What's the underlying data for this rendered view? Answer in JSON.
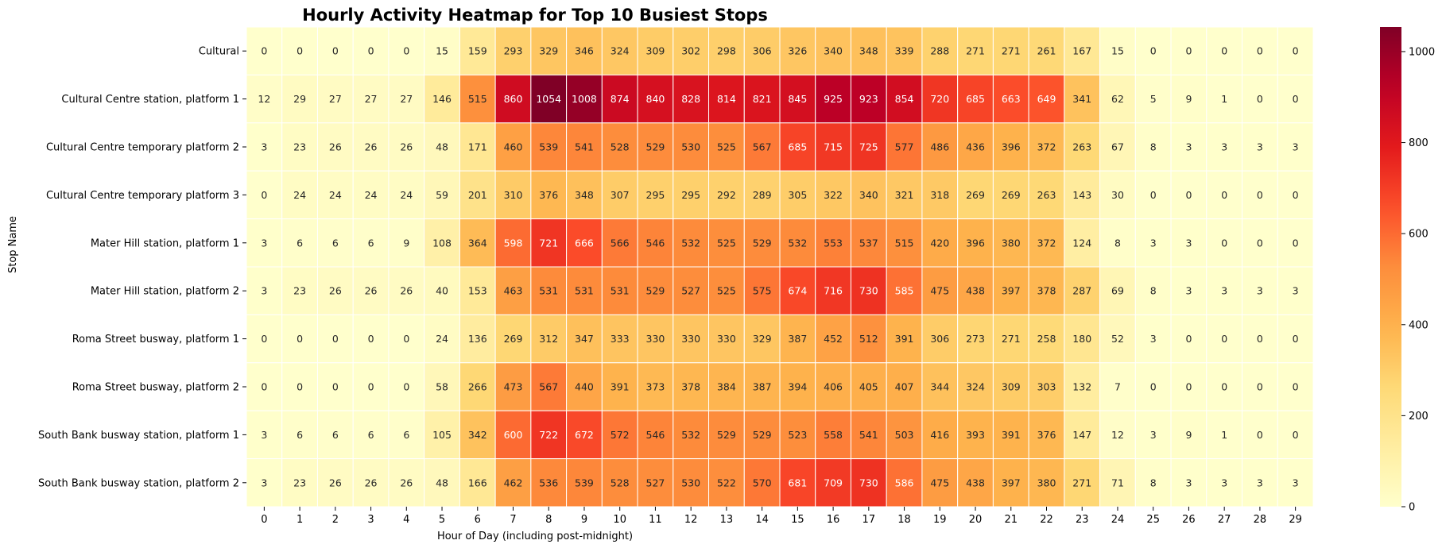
{
  "chart_data": {
    "type": "heatmap",
    "title": "Hourly Activity Heatmap for Top 10 Busiest Stops",
    "xlabel": "Hour of Day (including post-midnight)",
    "ylabel": "Stop Name",
    "x": [
      "0",
      "1",
      "2",
      "3",
      "4",
      "5",
      "6",
      "7",
      "8",
      "9",
      "10",
      "11",
      "12",
      "13",
      "14",
      "15",
      "16",
      "17",
      "18",
      "19",
      "20",
      "21",
      "22",
      "23",
      "24",
      "25",
      "26",
      "27",
      "28",
      "29"
    ],
    "y": [
      "Cultural",
      "Cultural Centre station, platform 1",
      "Cultural Centre temporary platform 2",
      "Cultural Centre temporary platform 3",
      "Mater Hill station, platform 1",
      "Mater Hill station, platform 2",
      "Roma Street busway, platform 1",
      "Roma Street busway, platform 2",
      "South Bank busway station, platform 1",
      "South Bank busway station, platform 2"
    ],
    "values": [
      [
        0,
        0,
        0,
        0,
        0,
        15,
        159,
        293,
        329,
        346,
        324,
        309,
        302,
        298,
        306,
        326,
        340,
        348,
        339,
        288,
        271,
        271,
        261,
        167,
        15,
        0,
        0,
        0,
        0,
        0
      ],
      [
        12,
        29,
        27,
        27,
        27,
        146,
        515,
        860,
        1054,
        1008,
        874,
        840,
        828,
        814,
        821,
        845,
        925,
        923,
        854,
        720,
        685,
        663,
        649,
        341,
        62,
        5,
        9,
        1,
        0,
        0
      ],
      [
        3,
        23,
        26,
        26,
        26,
        48,
        171,
        460,
        539,
        541,
        528,
        529,
        530,
        525,
        567,
        685,
        715,
        725,
        577,
        486,
        436,
        396,
        372,
        263,
        67,
        8,
        3,
        3,
        3,
        3
      ],
      [
        0,
        24,
        24,
        24,
        24,
        59,
        201,
        310,
        376,
        348,
        307,
        295,
        295,
        292,
        289,
        305,
        322,
        340,
        321,
        318,
        269,
        269,
        263,
        143,
        30,
        0,
        0,
        0,
        0,
        0
      ],
      [
        3,
        6,
        6,
        6,
        9,
        108,
        364,
        598,
        721,
        666,
        566,
        546,
        532,
        525,
        529,
        532,
        553,
        537,
        515,
        420,
        396,
        380,
        372,
        124,
        8,
        3,
        3,
        0,
        0,
        0
      ],
      [
        3,
        23,
        26,
        26,
        26,
        40,
        153,
        463,
        531,
        531,
        531,
        529,
        527,
        525,
        575,
        674,
        716,
        730,
        585,
        475,
        438,
        397,
        378,
        287,
        69,
        8,
        3,
        3,
        3,
        3
      ],
      [
        0,
        0,
        0,
        0,
        0,
        24,
        136,
        269,
        312,
        347,
        333,
        330,
        330,
        330,
        329,
        387,
        452,
        512,
        391,
        306,
        273,
        271,
        258,
        180,
        52,
        3,
        0,
        0,
        0,
        0
      ],
      [
        0,
        0,
        0,
        0,
        0,
        58,
        266,
        473,
        567,
        440,
        391,
        373,
        378,
        384,
        387,
        394,
        406,
        405,
        407,
        344,
        324,
        309,
        303,
        132,
        7,
        0,
        0,
        0,
        0,
        0
      ],
      [
        3,
        6,
        6,
        6,
        6,
        105,
        342,
        600,
        722,
        672,
        572,
        546,
        532,
        529,
        529,
        523,
        558,
        541,
        503,
        416,
        393,
        391,
        376,
        147,
        12,
        3,
        9,
        1,
        0,
        0
      ],
      [
        3,
        23,
        26,
        26,
        26,
        48,
        166,
        462,
        536,
        539,
        528,
        527,
        530,
        522,
        570,
        681,
        709,
        730,
        586,
        475,
        438,
        397,
        380,
        271,
        71,
        8,
        3,
        3,
        3,
        3
      ]
    ],
    "vmin": 0,
    "vmax": 1054,
    "colormap": "YlOrRd",
    "colorbar_ticks": [
      0,
      200,
      400,
      600,
      800,
      1000
    ],
    "grid": false,
    "cell_borders": "#ffffff"
  }
}
